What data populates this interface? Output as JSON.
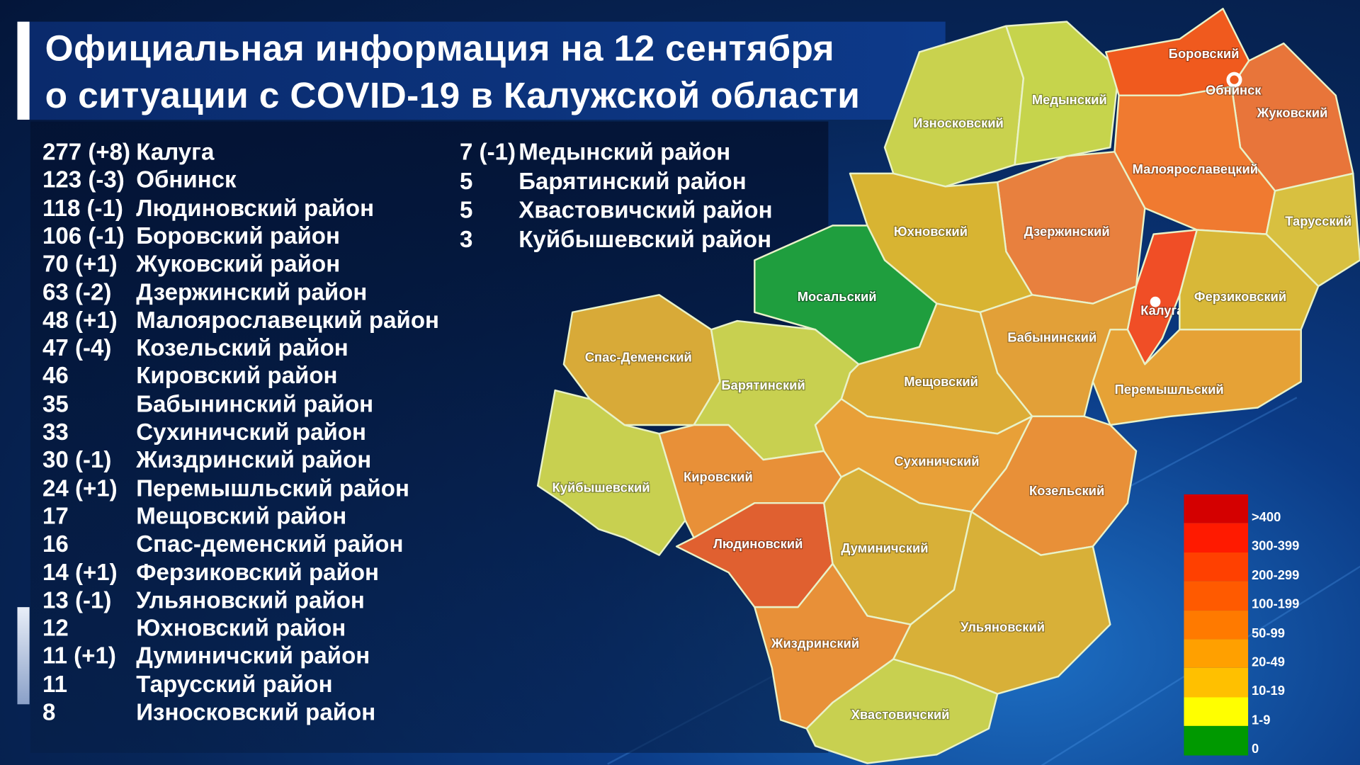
{
  "title": {
    "line1": "Официальная информация на 12 сентября",
    "line2": "о ситуации с COVID-19 в Калужской области"
  },
  "list_left": [
    {
      "num": "277 (+8)",
      "name": "Калуга"
    },
    {
      "num": "123 (-3)",
      "name": "Обнинск"
    },
    {
      "num": "118 (-1)",
      "name": "Людиновский район"
    },
    {
      "num": "106 (-1)",
      "name": "Боровский район"
    },
    {
      "num": "70 (+1)",
      "name": "Жуковский район"
    },
    {
      "num": "63 (-2)",
      "name": "Дзержинский район"
    },
    {
      "num": "48 (+1)",
      "name": "Малоярославецкий район"
    },
    {
      "num": "47 (-4)",
      "name": "Козельский район"
    },
    {
      "num": "46",
      "name": "Кировский район"
    },
    {
      "num": "35",
      "name": "Бабынинский район"
    },
    {
      "num": "33",
      "name": "Сухиничский район"
    },
    {
      "num": "30 (-1)",
      "name": "Жиздринский район"
    },
    {
      "num": "24 (+1)",
      "name": "Перемышльский район"
    },
    {
      "num": "17",
      "name": "Мещовский район"
    },
    {
      "num": "16",
      "name": "Спас-деменский район"
    },
    {
      "num": "14 (+1)",
      "name": "Ферзиковский район"
    },
    {
      "num": "13 (-1)",
      "name": "Ульяновский район"
    },
    {
      "num": "12",
      "name": "Юхновский район"
    },
    {
      "num": "11 (+1)",
      "name": "Думиничский район"
    },
    {
      "num": "11",
      "name": "Тарусский район"
    },
    {
      "num": "8",
      "name": "Износковский район"
    }
  ],
  "list_right": [
    {
      "num": "7 (-1)",
      "name": "Медынский район"
    },
    {
      "num": "5",
      "name": "Барятинский район"
    },
    {
      "num": "5",
      "name": "Хвастовичский район"
    },
    {
      "num": "3",
      "name": "Куйбышевский район"
    }
  ],
  "map": {
    "districts": [
      {
        "name": "Износковский",
        "color": "#c9d24e"
      },
      {
        "name": "Медынский",
        "color": "#c6d44c"
      },
      {
        "name": "Боровский",
        "color": "#f05a1e"
      },
      {
        "name": "Жуковский",
        "color": "#e8753a"
      },
      {
        "name": "Малоярославецкий",
        "color": "#f07a30"
      },
      {
        "name": "Тарусский",
        "color": "#d8c040"
      },
      {
        "name": "Дзержинский",
        "color": "#e8803e"
      },
      {
        "name": "Юхновский",
        "color": "#d8b432"
      },
      {
        "name": "Мосальский",
        "color": "#1f9e3e"
      },
      {
        "name": "Калуга",
        "color": "#f04e26"
      },
      {
        "name": "Ферзиковский",
        "color": "#d8b838"
      },
      {
        "name": "Перемышльский",
        "color": "#e6a236"
      },
      {
        "name": "Бабынинский",
        "color": "#e2a038"
      },
      {
        "name": "Мещовский",
        "color": "#dcac36"
      },
      {
        "name": "Спас-Деменский",
        "color": "#d8aa38"
      },
      {
        "name": "Барятинский",
        "color": "#c8d050"
      },
      {
        "name": "Куйбышевский",
        "color": "#c8d050"
      },
      {
        "name": "Кировский",
        "color": "#e89038"
      },
      {
        "name": "Сухиничский",
        "color": "#e8a038"
      },
      {
        "name": "Козельский",
        "color": "#e89038"
      },
      {
        "name": "Людиновский",
        "color": "#e06030"
      },
      {
        "name": "Думиничский",
        "color": "#d8b038"
      },
      {
        "name": "Жиздринский",
        "color": "#e89038"
      },
      {
        "name": "Ульяновский",
        "color": "#d8b038"
      },
      {
        "name": "Хвастовичский",
        "color": "#c8d050"
      }
    ],
    "city_obninsk": "Обнинск"
  },
  "legend": [
    {
      "label": ">400",
      "color": "#d40000"
    },
    {
      "label": "300-399",
      "color": "#ff1a00"
    },
    {
      "label": "200-299",
      "color": "#ff4000"
    },
    {
      "label": "100-199",
      "color": "#ff5a00"
    },
    {
      "label": "50-99",
      "color": "#ff7a00"
    },
    {
      "label": "20-49",
      "color": "#ffa000"
    },
    {
      "label": "10-19",
      "color": "#ffc000"
    },
    {
      "label": "1-9",
      "color": "#ffff00"
    },
    {
      "label": "0",
      "color": "#009900"
    }
  ]
}
